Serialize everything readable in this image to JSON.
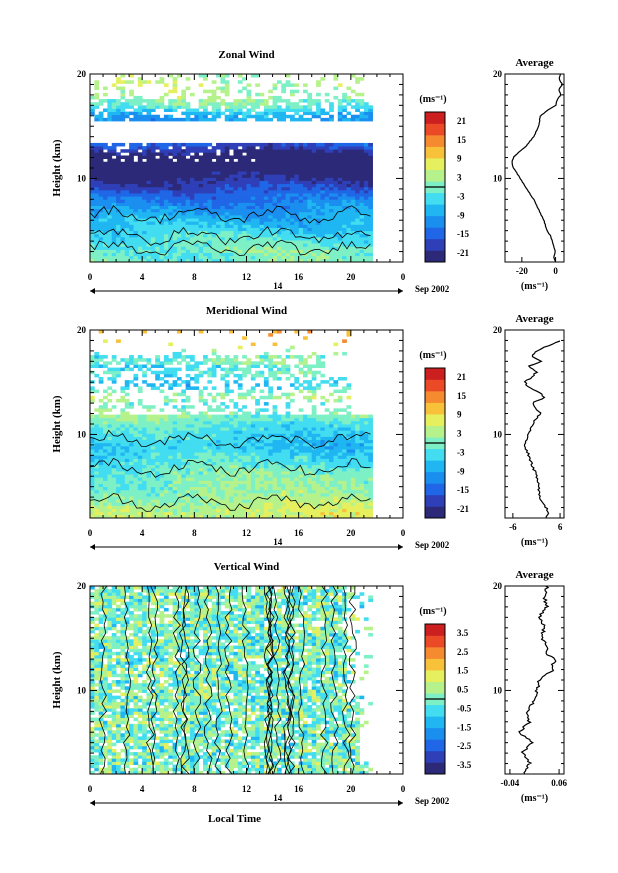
{
  "chart_data": [
    {
      "type": "heatmap",
      "title": "Zonal Wind",
      "ylabel": "Height (km)",
      "y_ticks": [
        "20",
        "10"
      ],
      "ylim": [
        2,
        20
      ],
      "x_ticks": [
        "0",
        "4",
        "8",
        "12",
        "16",
        "20",
        "0"
      ],
      "xlim": [
        0,
        24
      ],
      "date_marker": "14",
      "date_label": "Sep 2002",
      "xlabel": "",
      "colorbar": {
        "unit": "(ms⁻¹)",
        "ticks": [
          "21",
          "15",
          "9",
          "3",
          "-3",
          "-9",
          "-15",
          "-21"
        ],
        "range": [
          -24,
          24
        ],
        "zero_line": 0
      },
      "colors": [
        "#2c2a78",
        "#2e3fb8",
        "#1f67e6",
        "#1b8ff0",
        "#1fb6f2",
        "#42ddf0",
        "#7ef0c6",
        "#b6f28c",
        "#e6f05e",
        "#f7c23a",
        "#f58a2e",
        "#ea4a25",
        "#cc2020"
      ],
      "profile_heights": [
        2.0,
        2.5,
        3.0,
        3.5,
        4.0,
        4.5,
        5.0,
        6.0,
        7.0,
        8.0,
        9.0,
        10.0,
        11.0,
        11.5,
        12.0,
        12.5,
        13.0,
        14.0,
        15.0,
        16.0,
        16.5,
        17.0,
        17.5,
        18.0,
        18.5,
        19.0,
        19.5,
        20.0
      ],
      "profile_values": [
        0,
        -1,
        0,
        -1,
        -2,
        -3,
        -5,
        -7,
        -10,
        -13,
        -17,
        -21,
        -25,
        -26,
        -25,
        -22,
        -18,
        -13,
        -10,
        -9,
        -5,
        0,
        1,
        3,
        2,
        4,
        2,
        3
      ],
      "profile": {
        "title": "Average",
        "y_ticks": [
          "20",
          "10"
        ],
        "x_ticks": [
          "-20",
          "0"
        ],
        "xlim": [
          -30,
          5
        ],
        "unit": "(ms⁻¹)"
      }
    },
    {
      "type": "heatmap",
      "title": "Meridional Wind",
      "ylabel": "Height (km)",
      "y_ticks": [
        "20",
        "10"
      ],
      "ylim": [
        2,
        20
      ],
      "x_ticks": [
        "0",
        "4",
        "8",
        "12",
        "16",
        "20",
        "0"
      ],
      "xlim": [
        0,
        24
      ],
      "date_marker": "14",
      "date_label": "Sep 2002",
      "xlabel": "",
      "colorbar": {
        "unit": "(ms⁻¹)",
        "ticks": [
          "21",
          "15",
          "9",
          "3",
          "-3",
          "-9",
          "-15",
          "-21"
        ],
        "range": [
          -24,
          24
        ],
        "zero_line": 0
      },
      "colors": [
        "#2c2a78",
        "#2e3fb8",
        "#1f67e6",
        "#1b8ff0",
        "#1fb6f2",
        "#42ddf0",
        "#7ef0c6",
        "#b6f28c",
        "#e6f05e",
        "#f7c23a",
        "#f58a2e",
        "#ea4a25",
        "#cc2020"
      ],
      "profile_heights": [
        2.0,
        2.5,
        3.0,
        3.5,
        4.0,
        5.0,
        6.0,
        7.0,
        8.0,
        9.0,
        10.0,
        11.0,
        12.0,
        12.5,
        13.0,
        13.5,
        14.0,
        14.5,
        15.0,
        15.5,
        16.0,
        16.5,
        17.0,
        17.5,
        18.0,
        18.5,
        19.0
      ],
      "profile_values": [
        2.5,
        3,
        2.5,
        1.5,
        1,
        0.5,
        0,
        -1,
        -2,
        -3,
        -2,
        -1,
        1,
        0,
        -1,
        2,
        1,
        -2,
        -3,
        -1,
        0,
        -2,
        1,
        -1,
        0,
        3,
        6
      ],
      "profile": {
        "title": "Average",
        "y_ticks": [
          "20",
          "10"
        ],
        "x_ticks": [
          "-6",
          "6"
        ],
        "xlim": [
          -8,
          7
        ],
        "unit": "(ms⁻¹)"
      }
    },
    {
      "type": "heatmap",
      "title": "Vertical Wind",
      "ylabel": "Height (km)",
      "y_ticks": [
        "20",
        "10"
      ],
      "ylim": [
        2,
        20
      ],
      "x_ticks": [
        "0",
        "4",
        "8",
        "12",
        "16",
        "20",
        "0"
      ],
      "xlim": [
        0,
        24
      ],
      "date_marker": "14",
      "date_label": "Sep 2002",
      "xlabel": "Local Time",
      "colorbar": {
        "unit": "(ms⁻¹)",
        "ticks": [
          "3.5",
          "2.5",
          "1.5",
          "0.5",
          "-0.5",
          "-1.5",
          "-2.5",
          "-3.5"
        ],
        "range": [
          -4,
          4
        ],
        "zero_line": 0
      },
      "colors": [
        "#2c2a78",
        "#2e3fb8",
        "#1f67e6",
        "#1b8ff0",
        "#1fb6f2",
        "#42ddf0",
        "#7ef0c6",
        "#b6f28c",
        "#e6f05e",
        "#f7c23a",
        "#f58a2e",
        "#ea4a25",
        "#cc2020"
      ],
      "profile_heights": [
        2.0,
        3.0,
        4.0,
        5.0,
        6.0,
        7.0,
        8.0,
        9.0,
        10.0,
        11.0,
        11.5,
        12.0,
        12.5,
        13.0,
        13.5,
        14.0,
        15.0,
        16.0,
        17.0,
        18.0,
        19.0,
        20.0
      ],
      "profile_values": [
        -0.01,
        0.0,
        -0.015,
        0.005,
        -0.02,
        0.0,
        -0.005,
        0.01,
        0.015,
        0.02,
        0.035,
        0.05,
        0.045,
        0.055,
        0.03,
        0.04,
        0.025,
        0.03,
        0.02,
        0.035,
        0.03,
        0.035
      ],
      "profile": {
        "title": "Average",
        "y_ticks": [
          "20",
          "10"
        ],
        "x_ticks": [
          "-0.04",
          "0.06"
        ],
        "xlim": [
          -0.05,
          0.07
        ],
        "unit": "(ms⁻¹)"
      }
    }
  ]
}
